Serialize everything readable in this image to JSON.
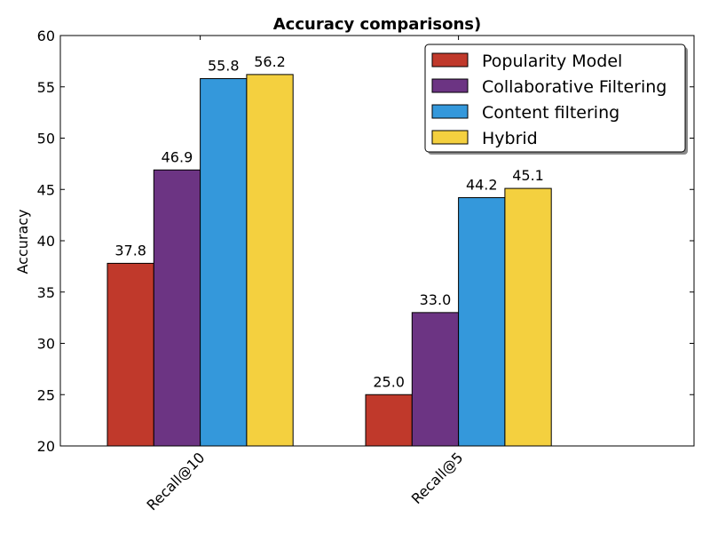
{
  "chart_data": {
    "type": "bar",
    "title": "Accuracy comparisons)",
    "xlabel": "",
    "ylabel": "Accuracy",
    "categories": [
      "Recall@10",
      "Recall@5"
    ],
    "series": [
      {
        "name": "Popularity Model",
        "color": "#c0392b",
        "values": [
          37.8,
          25.0
        ],
        "labels": [
          "37.8",
          "25.0"
        ]
      },
      {
        "name": "Collaborative Filtering",
        "color": "#6c3483",
        "values": [
          46.9,
          33.0
        ],
        "labels": [
          "46.9",
          "33.0"
        ]
      },
      {
        "name": "Content filtering",
        "color": "#3498db",
        "values": [
          55.8,
          44.2
        ],
        "labels": [
          "55.8",
          "44.2"
        ]
      },
      {
        "name": "Hybrid",
        "color": "#f4d03f",
        "values": [
          56.2,
          45.1
        ],
        "labels": [
          "56.2",
          "45.1"
        ]
      }
    ],
    "ylim": [
      20,
      60
    ],
    "yticks": [
      "20",
      "25",
      "30",
      "35",
      "40",
      "45",
      "50",
      "55",
      "60"
    ],
    "grid": false,
    "legend_position": "top-right"
  }
}
